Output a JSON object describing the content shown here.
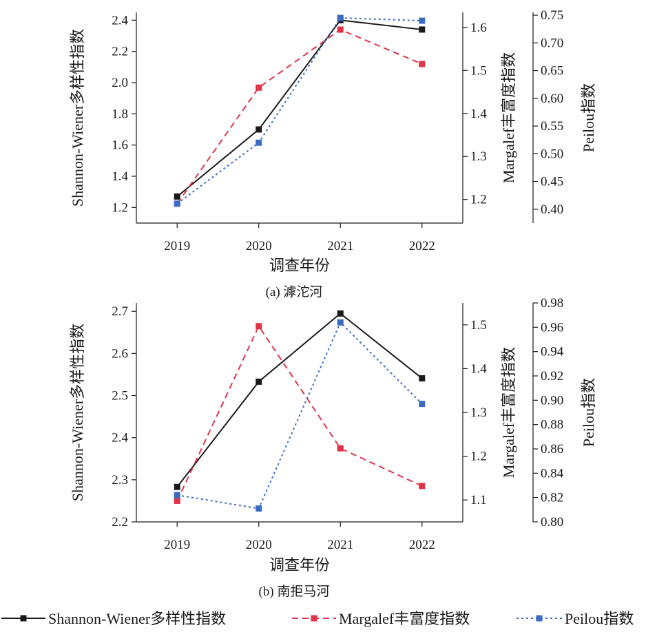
{
  "legend": {
    "items": [
      {
        "label": "Shannon-Wiener多样性指数",
        "color": "#1a1a1a",
        "dash": "solid"
      },
      {
        "label": "Margalef丰富度指数",
        "color": "#e03448",
        "dash": "dashed"
      },
      {
        "label": "Peilou指数",
        "color": "#3b6cc4",
        "dash": "dotted"
      }
    ]
  },
  "chart_data": [
    {
      "type": "line",
      "caption": "(a) 滹沱河",
      "xlabel": "调查年份",
      "categories": [
        "2019",
        "2020",
        "2021",
        "2022"
      ],
      "axes": {
        "left": {
          "label": "Shannon-Wiener多样性指数",
          "min": 1.1,
          "max": 2.45,
          "ticks": [
            "1.2",
            "1.4",
            "1.6",
            "1.8",
            "2.0",
            "2.2",
            "2.4"
          ]
        },
        "right1": {
          "label": "Margalef丰富度指数",
          "min": 1.145,
          "max": 1.635,
          "ticks": [
            "1.2",
            "1.3",
            "1.4",
            "1.5",
            "1.6"
          ]
        },
        "right2": {
          "label": "Peilou指数",
          "min": 0.375,
          "max": 0.755,
          "ticks": [
            "0.40",
            "0.45",
            "0.50",
            "0.55",
            "0.60",
            "0.65",
            "0.70",
            "0.75"
          ]
        }
      },
      "series": [
        {
          "name": "Shannon-Wiener多样性指数",
          "axis": "left",
          "values": [
            1.27,
            1.7,
            2.4,
            2.34
          ]
        },
        {
          "name": "Margalef丰富度指数",
          "axis": "right1",
          "values": [
            1.19,
            1.46,
            1.595,
            1.515
          ]
        },
        {
          "name": "Peilou指数",
          "axis": "right2",
          "values": [
            0.41,
            0.52,
            0.745,
            0.74
          ]
        }
      ]
    },
    {
      "type": "line",
      "caption": "(b) 南拒马河",
      "xlabel": "调查年份",
      "categories": [
        "2019",
        "2020",
        "2021",
        "2022"
      ],
      "axes": {
        "left": {
          "label": "Shannon-Wiener多样性指数",
          "min": 2.2,
          "max": 2.72,
          "ticks": [
            "2.2",
            "2.3",
            "2.4",
            "2.5",
            "2.6",
            "2.7"
          ]
        },
        "right1": {
          "label": "Margalef丰富度指数",
          "min": 1.05,
          "max": 1.55,
          "ticks": [
            "1.1",
            "1.2",
            "1.3",
            "1.4",
            "1.5"
          ]
        },
        "right2": {
          "label": "Peilou指数",
          "min": 0.8,
          "max": 0.98,
          "ticks": [
            "0.80",
            "0.82",
            "0.84",
            "0.86",
            "0.88",
            "0.90",
            "0.92",
            "0.94",
            "0.96",
            "0.98"
          ]
        }
      },
      "series": [
        {
          "name": "Shannon-Wiener多样性指数",
          "axis": "left",
          "values": [
            2.283,
            2.533,
            2.695,
            2.541
          ]
        },
        {
          "name": "Margalef丰富度指数",
          "axis": "right1",
          "values": [
            1.098,
            1.497,
            1.218,
            1.132
          ]
        },
        {
          "name": "Peilou指数",
          "axis": "right2",
          "values": [
            0.822,
            0.811,
            0.964,
            0.897
          ]
        }
      ]
    }
  ]
}
